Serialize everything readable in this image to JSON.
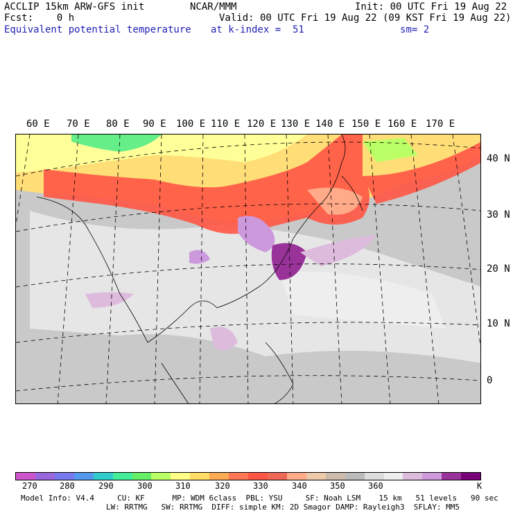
{
  "header": {
    "model": "ACCLIP 15km ARW-GFS init",
    "org": "NCAR/MMM",
    "init": "Init: 00 UTC Fri 19 Aug 22",
    "fcst": "Fcst:    0 h",
    "valid": "Valid: 00 UTC Fri 19 Aug 22 (09 KST Fri 19 Aug 22)",
    "field": "Equivalent potential temperature",
    "level": "at k-index =  51",
    "smooth": "sm= 2"
  },
  "map": {
    "lon_labels": [
      "60 E",
      "70 E",
      "80 E",
      "90 E",
      "100 E",
      "110 E",
      "120 E",
      "130 E",
      "140 E",
      "150 E",
      "160 E",
      "170 E"
    ],
    "lat_labels": [
      "40 N",
      "30 N",
      "20 N",
      "10 N",
      "0"
    ]
  },
  "colorbar": {
    "labels": [
      "270",
      "280",
      "290",
      "300",
      "310",
      "320",
      "330",
      "340",
      "350",
      "360",
      "K"
    ],
    "colors": [
      "#cc55cc",
      "#9966dd",
      "#7777ee",
      "#5599ee",
      "#33cccc",
      "#44ee99",
      "#66ee66",
      "#bbff66",
      "#ffff88",
      "#ffdd66",
      "#ffaa55",
      "#ff7755",
      "#ff5544",
      "#ee6655",
      "#ffaa88",
      "#eecaaa",
      "#ccbbaa",
      "#bbbbbb",
      "#dddddd",
      "#eeeeee",
      "#ddbbdd",
      "#cc99dd",
      "#993399",
      "#770077"
    ]
  },
  "model_info": {
    "line1": "Model Info: V4.4     CU: KF      MP: WDM 6class  PBL: YSU     SF: Noah LSM    15 km   51 levels   90 sec",
    "line2": "LW: RRTMG   SW: RRTMG  DIFF: simple KM: 2D Smagor DAMP: Rayleigh3  SFLAY: MM5"
  }
}
